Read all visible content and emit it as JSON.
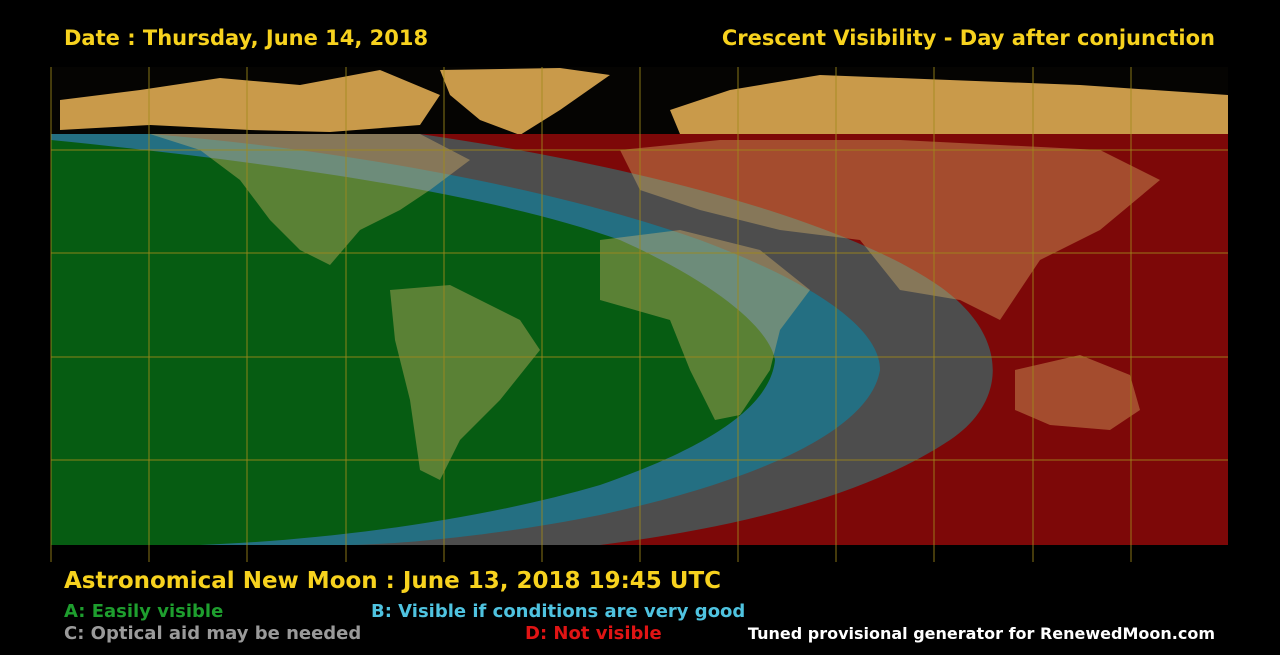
{
  "header": {
    "date": "Date : Thursday, June 14, 2018",
    "title": "Crescent Visibility - Day after conjunction"
  },
  "footer": {
    "new_moon": "Astronomical New Moon : June 13, 2018 19:45 UTC",
    "legend": {
      "a": "A: Easily visible",
      "b": "B: Visible if conditions are very good",
      "c": "C: Optical aid may be needed",
      "d": "D: Not visible"
    },
    "credit": "Tuned provisional generator for RenewedMoon.com"
  }
}
